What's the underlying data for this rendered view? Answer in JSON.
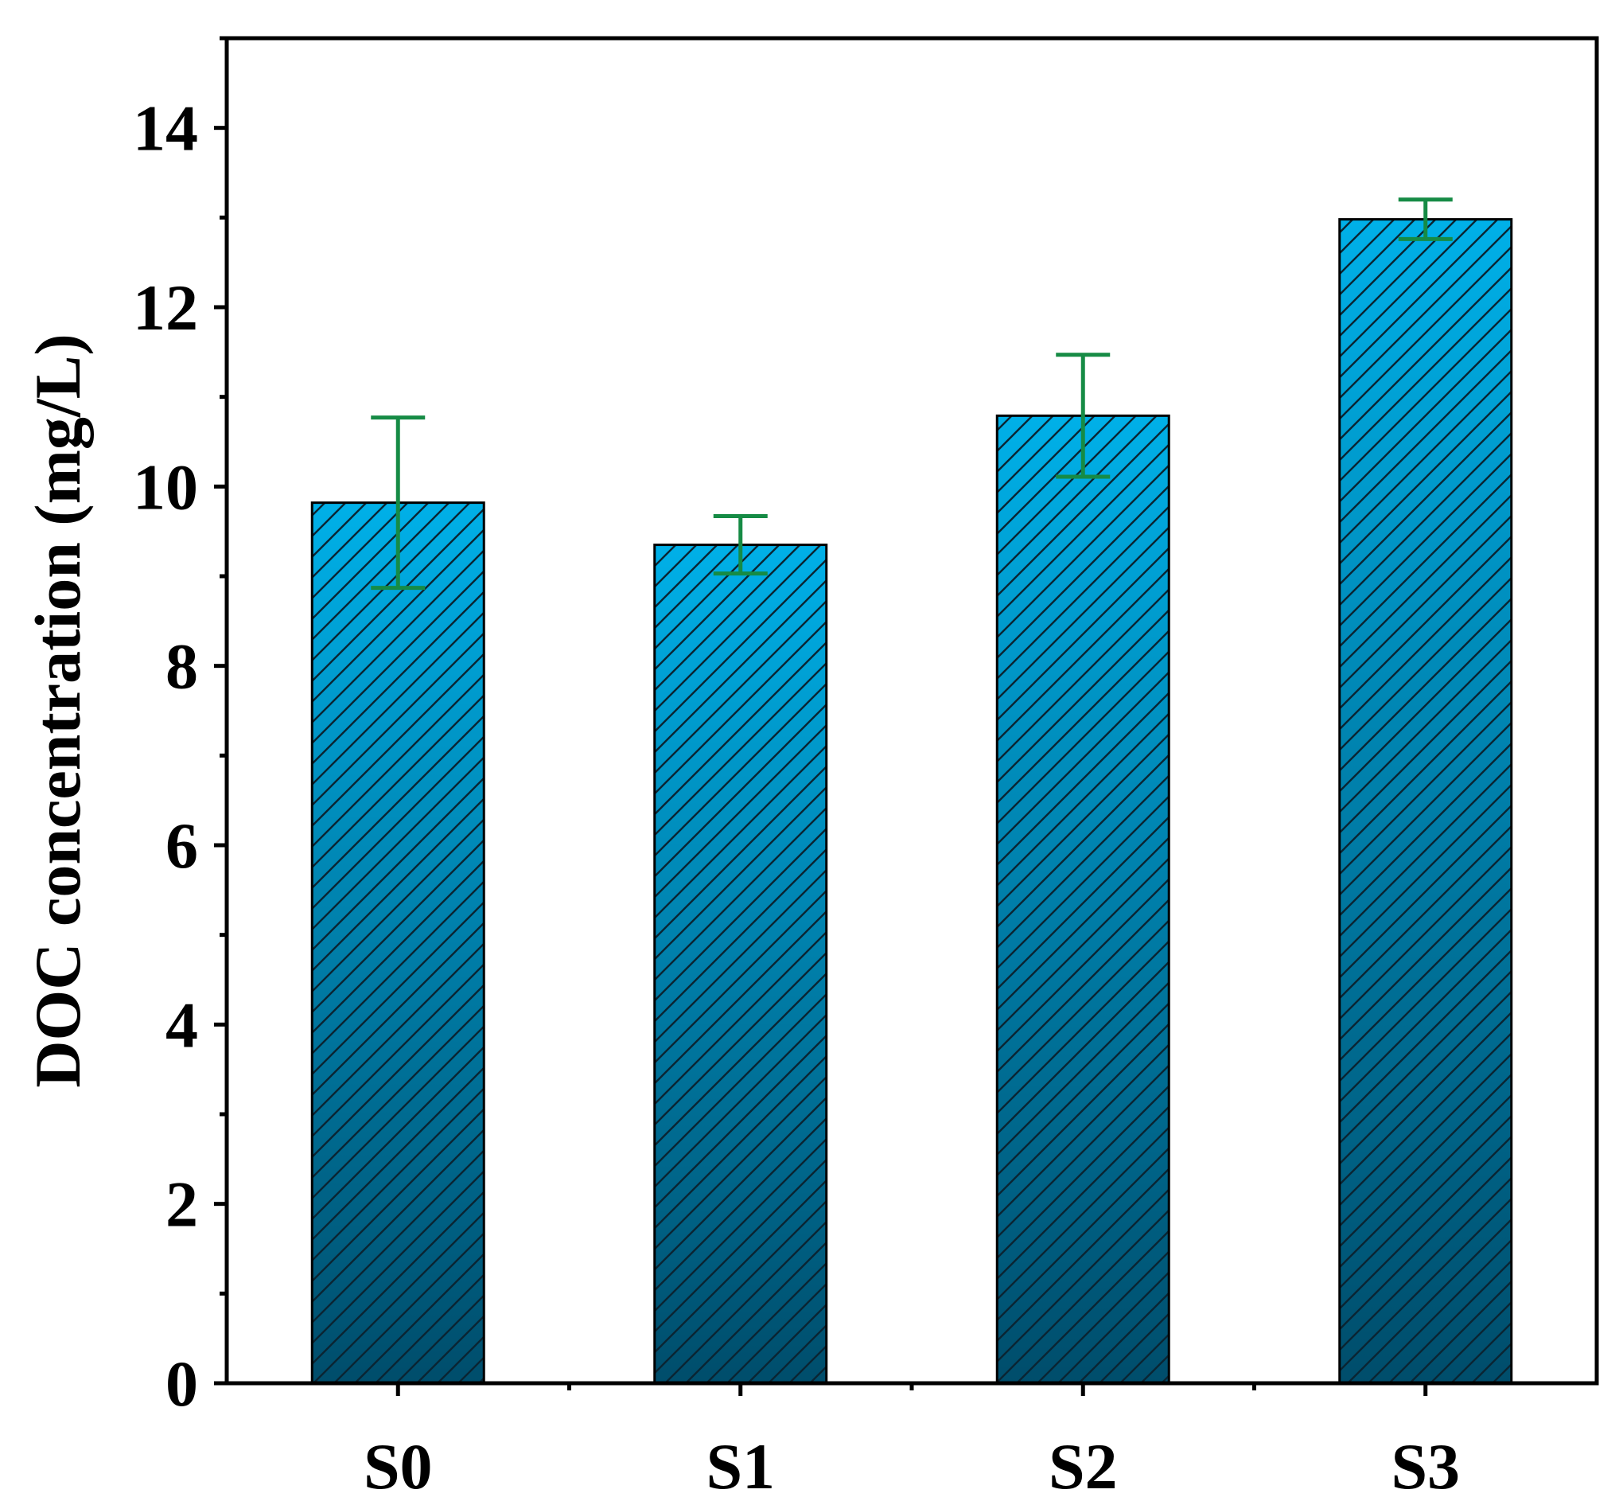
{
  "chart_data": {
    "type": "bar",
    "title": "",
    "xlabel": "",
    "ylabel": "DOC concentration (mg/L)",
    "categories": [
      "S0",
      "S1",
      "S2",
      "S3"
    ],
    "values": [
      9.82,
      9.35,
      10.79,
      12.98
    ],
    "errors": [
      0.95,
      0.32,
      0.68,
      0.22
    ],
    "ylim": [
      0,
      15
    ],
    "yticks": [
      0,
      2,
      4,
      6,
      8,
      10,
      12,
      14
    ],
    "ytick_labels": [
      "0",
      "2",
      "4",
      "6",
      "8",
      "10",
      "12",
      "14"
    ],
    "minor_ytick_step": 1,
    "grid": false,
    "legend": "none",
    "bar_fill": "hatched diagonal lines over blue vertical gradient",
    "colors": {
      "bar_top": "#00b0e8",
      "bar_bottom": "#004d6b",
      "bar_edge": "#000000",
      "hatch": "#0a2533",
      "error_bar": "#168b45",
      "axis": "#000000"
    }
  }
}
